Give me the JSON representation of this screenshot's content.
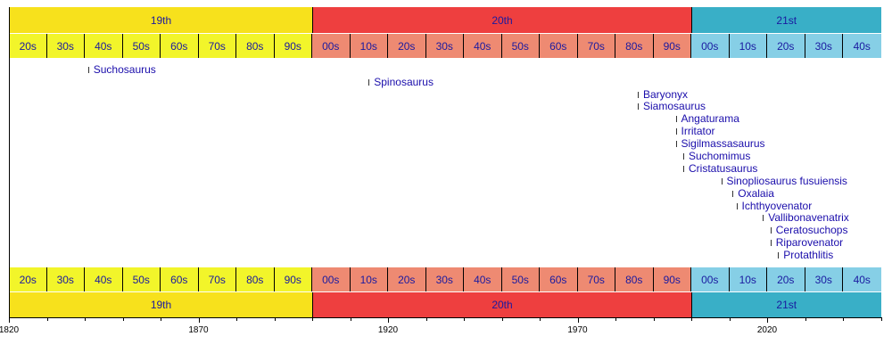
{
  "chart_data": {
    "type": "timeline",
    "xlim": [
      1820,
      2050
    ],
    "axis_ticks": [
      "1820",
      "1870",
      "1920",
      "1970",
      "2020"
    ],
    "centuries": [
      {
        "label": "19th",
        "start": 1820,
        "end": 1900,
        "color": "#f7e11c",
        "decade_color": "#f2f52a"
      },
      {
        "label": "20th",
        "start": 1900,
        "end": 2000,
        "color": "#ee3f3f",
        "decade_color": "#ee8a72"
      },
      {
        "label": "21st",
        "start": 2000,
        "end": 2050,
        "color": "#39afc7",
        "decade_color": "#86cfe6"
      }
    ],
    "decades": [
      "20s",
      "30s",
      "40s",
      "50s",
      "60s",
      "70s",
      "80s",
      "90s",
      "00s",
      "10s",
      "20s",
      "30s",
      "40s",
      "50s",
      "60s",
      "70s",
      "80s",
      "90s",
      "00s",
      "10s",
      "20s",
      "30s",
      "40s"
    ],
    "events": [
      {
        "label": "Suchosaurus",
        "year": 1841
      },
      {
        "label": "Spinosaurus",
        "year": 1915
      },
      {
        "label": "Baryonyx",
        "year": 1986
      },
      {
        "label": "Siamosaurus",
        "year": 1986
      },
      {
        "label": "Angaturama",
        "year": 1996
      },
      {
        "label": "Irritator",
        "year": 1996
      },
      {
        "label": "Sigilmassasaurus",
        "year": 1996
      },
      {
        "label": "Suchomimus",
        "year": 1998
      },
      {
        "label": "Cristatusaurus",
        "year": 1998
      },
      {
        "label": "Sinopliosaurus fusuiensis",
        "year": 2008
      },
      {
        "label": "Oxalaia",
        "year": 2011
      },
      {
        "label": "Ichthyovenator",
        "year": 2012
      },
      {
        "label": "Vallibonavenatrix",
        "year": 2019
      },
      {
        "label": "Ceratosuchops",
        "year": 2021
      },
      {
        "label": "Riparovenator",
        "year": 2021
      },
      {
        "label": "Protathlitis",
        "year": 2023
      }
    ]
  }
}
